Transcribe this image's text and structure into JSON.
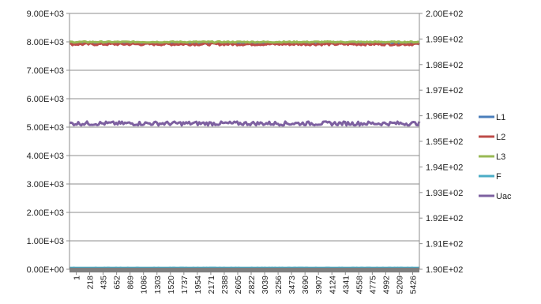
{
  "chart_data": {
    "type": "line",
    "grid": true,
    "legend_position": "right",
    "y_left": {
      "range": [
        0,
        9000
      ],
      "ticks": [
        "0.00E+00",
        "1.00E+03",
        "2.00E+03",
        "3.00E+03",
        "4.00E+03",
        "5.00E+03",
        "6.00E+03",
        "7.00E+03",
        "8.00E+03",
        "9.00E+03"
      ]
    },
    "y_right": {
      "range": [
        190,
        200
      ],
      "ticks": [
        "1.90E+02",
        "1.91E+02",
        "1.92E+02",
        "1.93E+02",
        "1.94E+02",
        "1.95E+02",
        "1.96E+02",
        "1.97E+02",
        "1.98E+02",
        "1.99E+02",
        "2.00E+02"
      ]
    },
    "x_range": [
      1,
      5500
    ],
    "x_ticks": [
      "1",
      "218",
      "435",
      "652",
      "869",
      "1086",
      "1303",
      "1520",
      "1737",
      "1954",
      "2171",
      "2388",
      "2605",
      "2822",
      "3039",
      "3256",
      "3473",
      "3690",
      "3907",
      "4124",
      "4341",
      "4558",
      "4775",
      "4992",
      "5209",
      "5426"
    ],
    "series": [
      {
        "name": "L1",
        "color": "#4a7ebb",
        "axis": "left",
        "approx_value": 7960,
        "noise": 30
      },
      {
        "name": "L2",
        "color": "#be4b48",
        "axis": "left",
        "approx_value": 7920,
        "noise": 40
      },
      {
        "name": "L3",
        "color": "#98b954",
        "axis": "left",
        "approx_value": 7995,
        "noise": 20
      },
      {
        "name": "F",
        "color": "#4bacc6",
        "axis": "left",
        "approx_value": 50,
        "noise": 3
      },
      {
        "name": "Uac",
        "color": "#7d60a0",
        "axis": "left",
        "approx_value": 5130,
        "noise": 70
      }
    ]
  }
}
